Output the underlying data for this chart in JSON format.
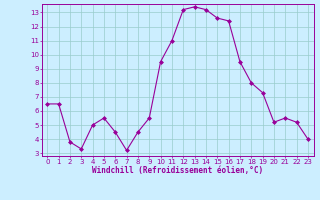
{
  "x": [
    0,
    1,
    2,
    3,
    4,
    5,
    6,
    7,
    8,
    9,
    10,
    11,
    12,
    13,
    14,
    15,
    16,
    17,
    18,
    19,
    20,
    21,
    22,
    23
  ],
  "y": [
    6.5,
    6.5,
    3.8,
    3.3,
    5.0,
    5.5,
    4.5,
    3.2,
    4.5,
    5.5,
    9.5,
    11.0,
    13.2,
    13.4,
    13.2,
    12.6,
    12.4,
    9.5,
    8.0,
    7.3,
    5.2,
    5.5,
    5.2,
    4.0
  ],
  "line_color": "#990099",
  "marker": "D",
  "marker_size": 2,
  "bg_color": "#cceeff",
  "grid_color": "#99cccc",
  "xlabel": "Windchill (Refroidissement éolien,°C)",
  "xlabel_color": "#990099",
  "tick_color": "#990099",
  "spine_color": "#990099",
  "ylim": [
    2.8,
    13.6
  ],
  "xlim": [
    -0.5,
    23.5
  ],
  "yticks": [
    3,
    4,
    5,
    6,
    7,
    8,
    9,
    10,
    11,
    12,
    13
  ],
  "xticks": [
    0,
    1,
    2,
    3,
    4,
    5,
    6,
    7,
    8,
    9,
    10,
    11,
    12,
    13,
    14,
    15,
    16,
    17,
    18,
    19,
    20,
    21,
    22,
    23
  ],
  "tick_fontsize": 5.0,
  "xlabel_fontsize": 5.5,
  "linewidth": 0.8
}
